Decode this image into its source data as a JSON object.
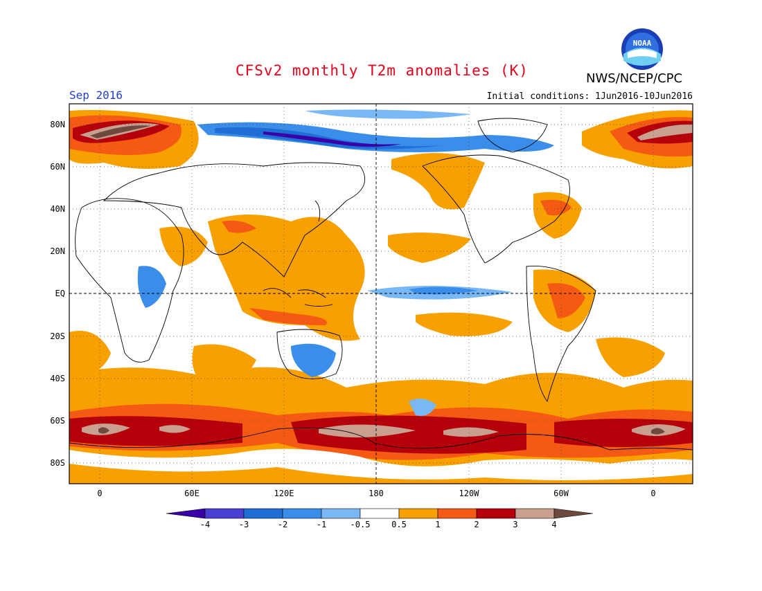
{
  "header": {
    "title": "CFSv2 monthly T2m anomalies (K)",
    "organization": "NWS/NCEP/CPC",
    "logo_text": "NOAA",
    "month_label": "Sep 2016",
    "initial_conditions": "Initial conditions: 1Jun2016-10Jun2016"
  },
  "axes": {
    "lat_labels": [
      "80N",
      "60N",
      "40N",
      "20N",
      "EQ",
      "20S",
      "40S",
      "60S",
      "80S"
    ],
    "lon_labels": [
      "0",
      "60E",
      "120E",
      "180",
      "120W",
      "60W",
      "0"
    ]
  },
  "colorbar": {
    "labels": [
      "-4",
      "-3",
      "-2",
      "-1",
      "-0.5",
      "0.5",
      "1",
      "2",
      "3",
      "4"
    ],
    "colors": [
      "#3a00a8",
      "#4a3fd0",
      "#1f6ed6",
      "#3a8eea",
      "#7ab8f5",
      "#ffffff",
      "#f7a000",
      "#f55a14",
      "#b5000b",
      "#c9a090",
      "#6e4a3e"
    ]
  },
  "anomaly_colors": {
    "warm_1": "#f7a000",
    "warm_2": "#f55a14",
    "warm_3": "#b5000b",
    "warm_4": "#c9a090",
    "warm_5": "#6e4a3e",
    "cool_1": "#7ab8f5",
    "cool_2": "#3a8eea",
    "cool_3": "#1f6ed6",
    "cool_4": "#3a00a8"
  }
}
